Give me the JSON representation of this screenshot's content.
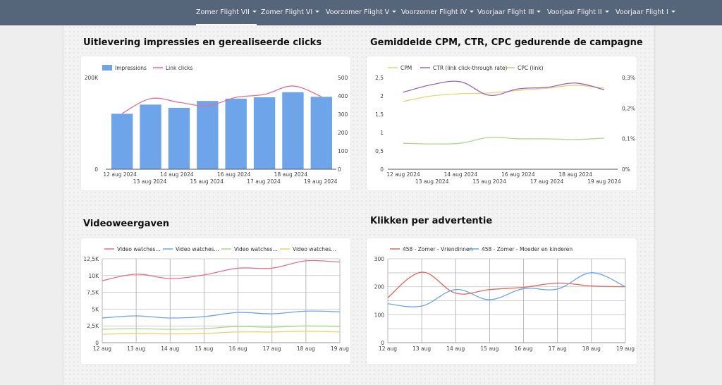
{
  "nav": {
    "items": [
      {
        "label": "Zomer Flight VII",
        "active": true
      },
      {
        "label": "Zomer Flight VI",
        "active": false
      },
      {
        "label": "Voorzomer Flight V",
        "active": false
      },
      {
        "label": "Voorzomer Flight IV",
        "active": false
      },
      {
        "label": "Voorjaar Flight III",
        "active": false
      },
      {
        "label": "Voorjaar Flight II",
        "active": false
      },
      {
        "label": "Voorjaar Flight I",
        "active": false
      }
    ]
  },
  "colors": {
    "nav_bg": "#56667a",
    "impressions": "#6ea4ea",
    "link_clicks": "#ec6d8e",
    "cpm": "#f2cf6a",
    "ctr": "#9b63c3",
    "cpc": "#a9db8b",
    "video_1": "#ec6d8e",
    "video_2": "#6ea4ea",
    "video_3": "#a9db8b",
    "video_4": "#f2cf6a",
    "ad_1": "#e0675a",
    "ad_2": "#6ea4ea"
  },
  "chart_data": [
    {
      "id": "impressions_clicks",
      "type": "bar",
      "title": "Uitlevering impressies en gerealiseerde clicks",
      "categories": [
        "12 aug 2024",
        "13 aug 2024",
        "14 aug 2024",
        "15 aug 2024",
        "16 aug 2024",
        "17 aug 2024",
        "18 aug 2024",
        "19 aug 2024"
      ],
      "series": [
        {
          "name": "Impressions",
          "kind": "bar",
          "axis": "left",
          "values": [
            121000,
            141000,
            134000,
            149000,
            154000,
            157000,
            168000,
            158000
          ]
        },
        {
          "name": "Link clicks",
          "kind": "line",
          "axis": "right",
          "values": [
            304,
            385,
            365,
            346,
            392,
            408,
            454,
            396
          ]
        }
      ],
      "y_left": {
        "range": [
          0,
          200000
        ],
        "ticks": [
          "0",
          "200K"
        ]
      },
      "y_right": {
        "range": [
          0,
          500
        ],
        "ticks": [
          "0",
          "100",
          "200",
          "300",
          "400",
          "500"
        ]
      },
      "legend": "top-left"
    },
    {
      "id": "cpm_ctr_cpc",
      "type": "line",
      "title": "Gemiddelde CPM, CTR, CPC gedurende de campagne",
      "categories": [
        "12 aug 2024",
        "13 aug 2024",
        "14 aug 2024",
        "15 aug 2024",
        "16 aug 2024",
        "17 aug 2024",
        "18 aug 2024",
        "19 aug 2024"
      ],
      "series": [
        {
          "name": "CPM",
          "axis": "left",
          "values": [
            1.85,
            2.0,
            2.06,
            2.08,
            2.15,
            2.21,
            2.29,
            2.21
          ]
        },
        {
          "name": "CTR (link click-through rate)",
          "axis": "right",
          "values": [
            0.252,
            0.277,
            0.286,
            0.242,
            0.263,
            0.268,
            0.282,
            0.26
          ]
        },
        {
          "name": "CPC (link)",
          "axis": "left",
          "values": [
            0.71,
            0.69,
            0.71,
            0.87,
            0.83,
            0.83,
            0.81,
            0.85
          ]
        }
      ],
      "y_left": {
        "range": [
          0,
          2.5
        ],
        "ticks": [
          "0",
          "0,5",
          "1",
          "1,5",
          "2",
          "2,5"
        ]
      },
      "y_right": {
        "range": [
          0,
          0.3
        ],
        "ticks": [
          "0%",
          "0,1%",
          "0,2%",
          "0,3%"
        ]
      },
      "legend": "top-left"
    },
    {
      "id": "video_views",
      "type": "line",
      "title": "Videoweergaven",
      "categories": [
        "12 aug",
        "13 aug",
        "14 aug",
        "15 aug",
        "16 aug",
        "17 aug",
        "18 aug",
        "19 aug"
      ],
      "series": [
        {
          "name": "Video watches...",
          "values": [
            9240,
            10200,
            9560,
            10100,
            11100,
            11100,
            12200,
            12000
          ]
        },
        {
          "name": "Video watches...",
          "values": [
            3680,
            3990,
            3680,
            3890,
            4500,
            4300,
            4700,
            4600
          ]
        },
        {
          "name": "Video watches...",
          "values": [
            2000,
            2100,
            2000,
            2100,
            2400,
            2300,
            2500,
            2400
          ]
        },
        {
          "name": "Video watches...",
          "values": [
            1260,
            1370,
            1300,
            1370,
            1600,
            1600,
            1700,
            1600
          ]
        }
      ],
      "y": {
        "range": [
          0,
          12500
        ],
        "ticks": [
          "0",
          "2,5K",
          "5K",
          "7,5K",
          "10K",
          "12,5K"
        ]
      },
      "grid": true,
      "legend": "top-left"
    },
    {
      "id": "clicks_per_ad",
      "type": "line",
      "title": "Klikken per advertentie",
      "categories": [
        "12 aug",
        "13 aug",
        "14 aug",
        "15 aug",
        "16 aug",
        "17 aug",
        "18 aug",
        "19 aug"
      ],
      "series": [
        {
          "name": "458 - Zomer - Vriendinnen",
          "values": [
            161,
            252,
            177,
            190,
            198,
            213,
            203,
            200
          ]
        },
        {
          "name": "458 - Zomer - Moeder en kinderen",
          "values": [
            139,
            131,
            190,
            154,
            193,
            192,
            250,
            200
          ]
        }
      ],
      "y": {
        "range": [
          0,
          300
        ],
        "ticks": [
          "0",
          "100",
          "200",
          "300"
        ]
      },
      "grid": true,
      "legend": "top-left"
    }
  ]
}
